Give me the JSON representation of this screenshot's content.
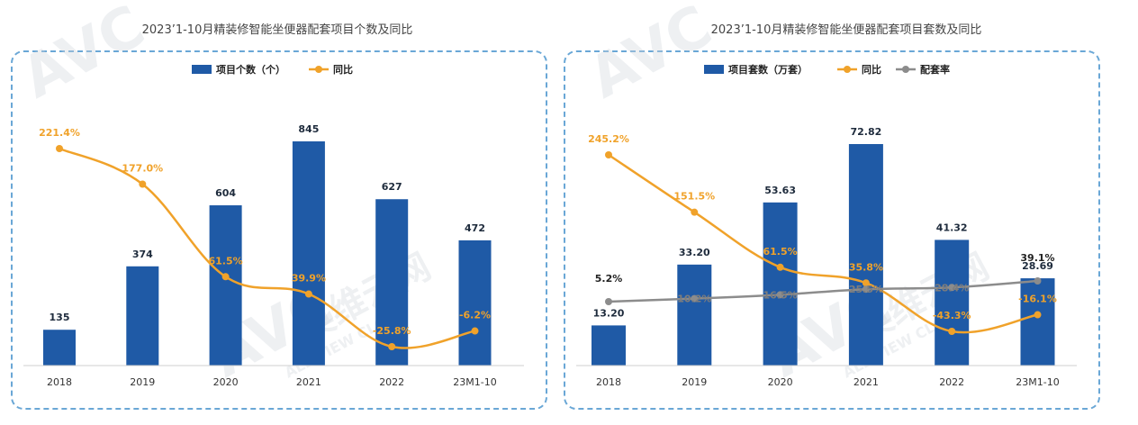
{
  "chart_data": [
    {
      "type": "bar",
      "title": "2023’1-10月精装修智能坐便器配套项目个数及同比",
      "categories": [
        "2018",
        "2019",
        "2020",
        "2021",
        "2022",
        "23M1-10"
      ],
      "series": [
        {
          "name": "项目个数（个）",
          "type": "bar",
          "color": "#1f5aa6",
          "values": [
            135,
            374,
            604,
            845,
            627,
            472
          ],
          "labels": [
            "135",
            "374",
            "604",
            "845",
            "627",
            "472"
          ]
        },
        {
          "name": "同比",
          "type": "line",
          "color": "#f0a22a",
          "values": [
            221.4,
            177.0,
            61.5,
            39.9,
            -25.8,
            -6.2
          ],
          "labels": [
            "221.4%",
            "177.0%",
            "61.5%",
            "39.9%",
            "-25.8%",
            "-6.2%"
          ]
        }
      ],
      "legend": "top-center",
      "grid": false
    },
    {
      "type": "bar",
      "title": "2023’1-10月精装修智能坐便器配套项目套数及同比",
      "categories": [
        "2018",
        "2019",
        "2020",
        "2021",
        "2022",
        "23M1-10"
      ],
      "series": [
        {
          "name": "项目套数（万套）",
          "type": "bar",
          "color": "#1f5aa6",
          "values": [
            13.2,
            33.2,
            53.63,
            72.82,
            41.32,
            28.69
          ],
          "labels": [
            "13.20",
            "33.20",
            "53.63",
            "72.82",
            "41.32",
            "28.69"
          ]
        },
        {
          "name": "同比",
          "type": "line",
          "color": "#f0a22a",
          "values": [
            245.2,
            151.5,
            61.5,
            35.8,
            -43.3,
            -16.1
          ],
          "labels": [
            "245.2%",
            "151.5%",
            "61.5%",
            "35.8%",
            "-43.3%",
            "-16.1%"
          ]
        },
        {
          "name": "配套率",
          "type": "line",
          "color": "#8c8c8c",
          "values": [
            5.2,
            10.2,
            16.5,
            25.5,
            28.4,
            39.1
          ],
          "labels": [
            "5.2%",
            "10.2%",
            "16.5%",
            "25.5%",
            "28.4%",
            "39.1%"
          ]
        }
      ],
      "legend": "top-center",
      "grid": false
    }
  ],
  "watermark": {
    "brand": "AVC",
    "cn": "奥维云网",
    "en": "ALL VIEW CLOUD"
  }
}
